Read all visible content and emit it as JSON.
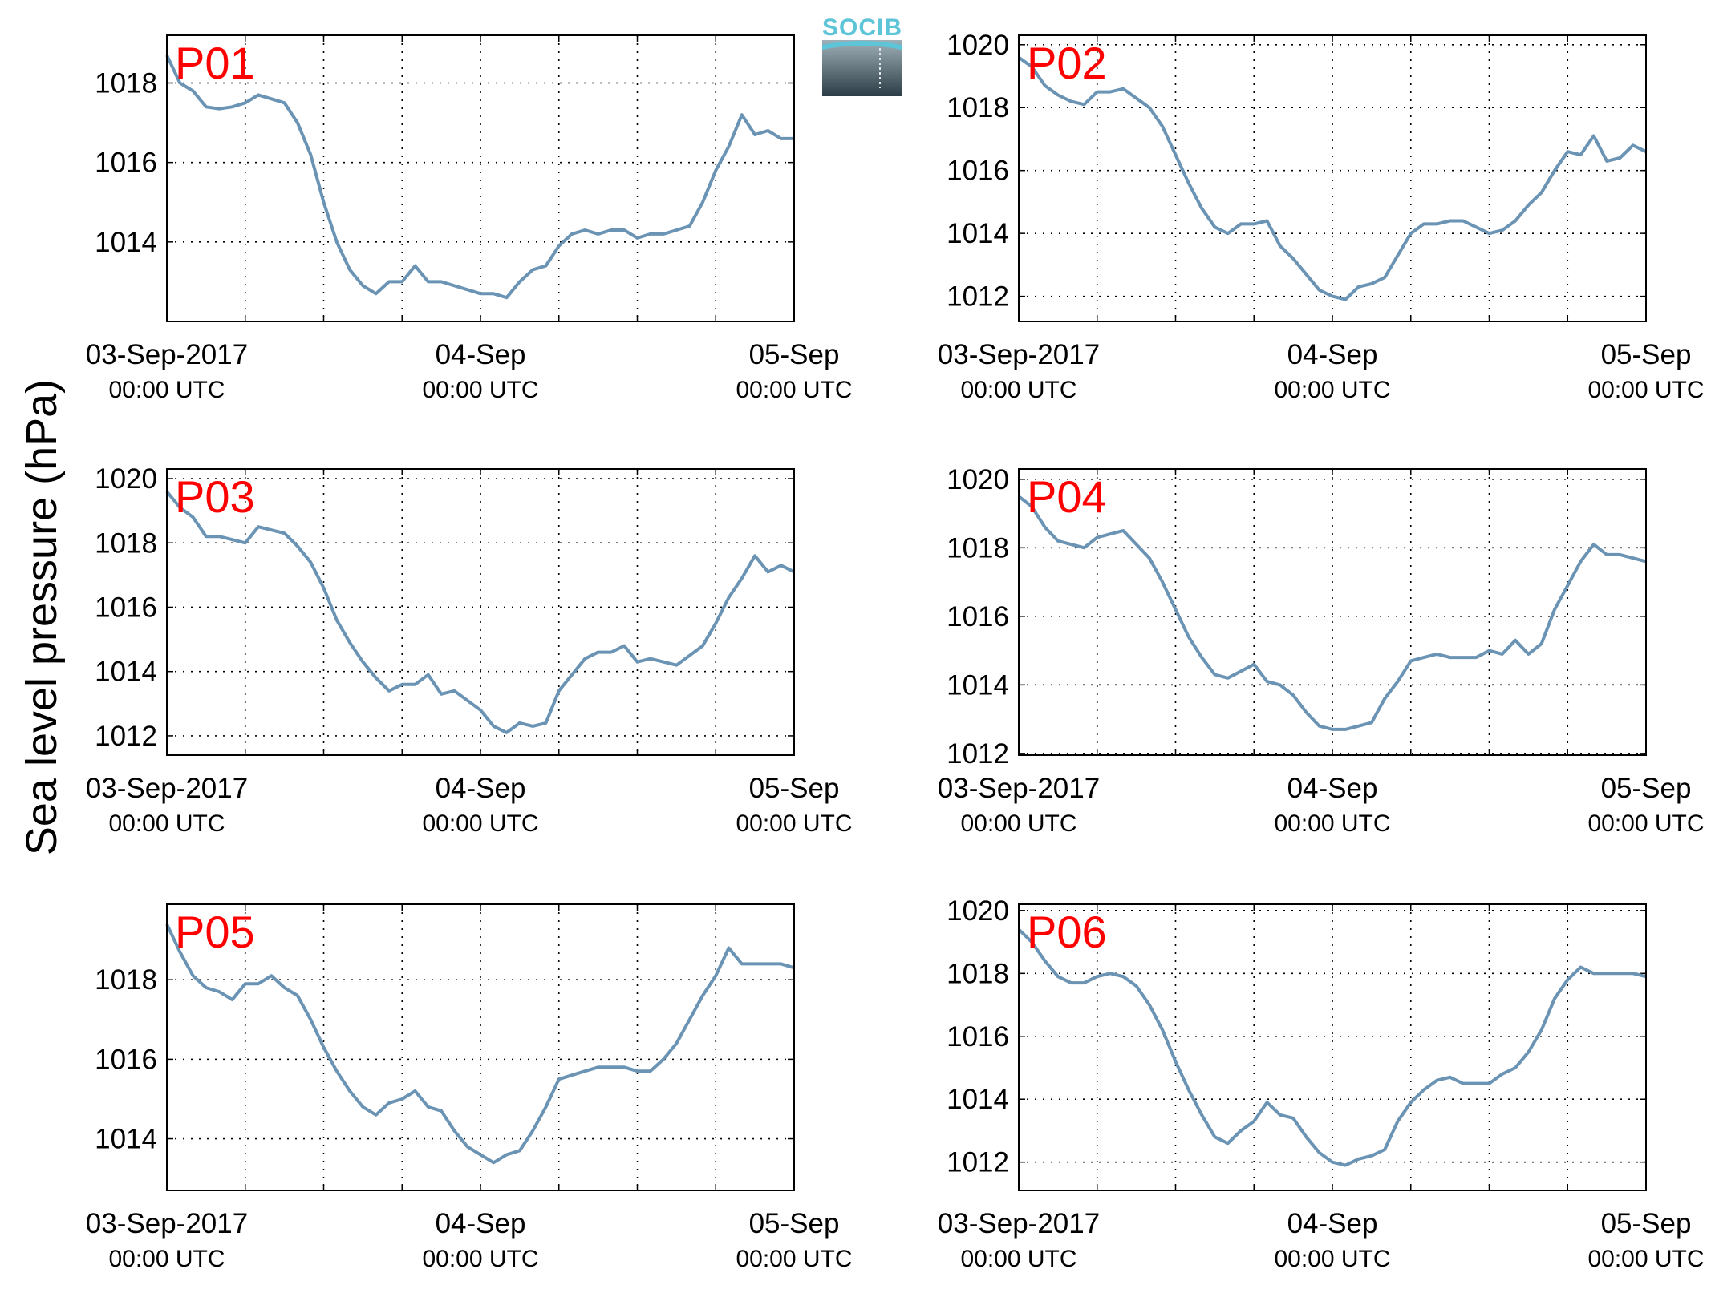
{
  "figure": {
    "ylabel": "Sea level pressure (hPa)",
    "logo": {
      "text": "SOCIB"
    }
  },
  "chart_data": [
    {
      "type": "line",
      "label": "P01",
      "xlim": [
        0,
        48
      ],
      "ylim": [
        1012.0,
        1019.2
      ],
      "yticks": [
        1014,
        1016,
        1018
      ],
      "xtick_labels": [
        {
          "x": 0,
          "label": "03-Sep-2017",
          "sublabel": "00:00 UTC"
        },
        {
          "x": 24,
          "label": "04-Sep",
          "sublabel": "00:00 UTC"
        },
        {
          "x": 48,
          "label": "05-Sep",
          "sublabel": "00:00 UTC"
        }
      ],
      "grid": true,
      "line_color": "#6a93b4",
      "series": [
        {
          "x": [
            0,
            1,
            2,
            3,
            4,
            5,
            6,
            7,
            8,
            9,
            10,
            11,
            12,
            13,
            14,
            15,
            16,
            17,
            18,
            19,
            20,
            21,
            22,
            23,
            24,
            25,
            26,
            27,
            28,
            29,
            30,
            31,
            32,
            33,
            34,
            35,
            36,
            37,
            38,
            39,
            40,
            41,
            42,
            43,
            44,
            45,
            46,
            47,
            48
          ],
          "y": [
            1018.7,
            1018.0,
            1017.8,
            1017.4,
            1017.35,
            1017.4,
            1017.5,
            1017.7,
            1017.6,
            1017.5,
            1017.0,
            1016.2,
            1015.0,
            1014.0,
            1013.3,
            1012.9,
            1012.7,
            1013.0,
            1013.0,
            1013.4,
            1013.0,
            1013.0,
            1012.9,
            1012.8,
            1012.7,
            1012.7,
            1012.6,
            1013.0,
            1013.3,
            1013.4,
            1013.9,
            1014.2,
            1014.3,
            1014.2,
            1014.3,
            1014.3,
            1014.1,
            1014.2,
            1014.2,
            1014.3,
            1014.4,
            1015.0,
            1015.8,
            1016.4,
            1017.2,
            1016.7,
            1016.8,
            1016.6,
            1016.6
          ]
        }
      ]
    },
    {
      "type": "line",
      "label": "P02",
      "xlim": [
        0,
        48
      ],
      "ylim": [
        1011.2,
        1020.3
      ],
      "yticks": [
        1012,
        1014,
        1016,
        1018,
        1020
      ],
      "xtick_labels": [
        {
          "x": 0,
          "label": "03-Sep-2017",
          "sublabel": "00:00 UTC"
        },
        {
          "x": 24,
          "label": "04-Sep",
          "sublabel": "00:00 UTC"
        },
        {
          "x": 48,
          "label": "05-Sep",
          "sublabel": "00:00 UTC"
        }
      ],
      "grid": true,
      "line_color": "#6a93b4",
      "series": [
        {
          "x": [
            0,
            1,
            2,
            3,
            4,
            5,
            6,
            7,
            8,
            9,
            10,
            11,
            12,
            13,
            14,
            15,
            16,
            17,
            18,
            19,
            20,
            21,
            22,
            23,
            24,
            25,
            26,
            27,
            28,
            29,
            30,
            31,
            32,
            33,
            34,
            35,
            36,
            37,
            38,
            39,
            40,
            41,
            42,
            43,
            44,
            45,
            46,
            47,
            48
          ],
          "y": [
            1019.6,
            1019.3,
            1018.7,
            1018.4,
            1018.2,
            1018.1,
            1018.5,
            1018.5,
            1018.6,
            1018.3,
            1018.0,
            1017.4,
            1016.5,
            1015.6,
            1014.8,
            1014.2,
            1014.0,
            1014.3,
            1014.3,
            1014.4,
            1013.6,
            1013.2,
            1012.7,
            1012.2,
            1012.0,
            1011.9,
            1012.3,
            1012.4,
            1012.6,
            1013.3,
            1014.0,
            1014.3,
            1014.3,
            1014.4,
            1014.4,
            1014.2,
            1014.0,
            1014.1,
            1014.4,
            1014.9,
            1015.3,
            1016.0,
            1016.6,
            1016.5,
            1017.1,
            1016.3,
            1016.4,
            1016.8,
            1016.6
          ]
        }
      ]
    },
    {
      "type": "line",
      "label": "P03",
      "xlim": [
        0,
        48
      ],
      "ylim": [
        1011.4,
        1020.3
      ],
      "yticks": [
        1012,
        1014,
        1016,
        1018,
        1020
      ],
      "xtick_labels": [
        {
          "x": 0,
          "label": "03-Sep-2017",
          "sublabel": "00:00 UTC"
        },
        {
          "x": 24,
          "label": "04-Sep",
          "sublabel": "00:00 UTC"
        },
        {
          "x": 48,
          "label": "05-Sep",
          "sublabel": "00:00 UTC"
        }
      ],
      "grid": true,
      "line_color": "#6a93b4",
      "series": [
        {
          "x": [
            0,
            1,
            2,
            3,
            4,
            5,
            6,
            7,
            8,
            9,
            10,
            11,
            12,
            13,
            14,
            15,
            16,
            17,
            18,
            19,
            20,
            21,
            22,
            23,
            24,
            25,
            26,
            27,
            28,
            29,
            30,
            31,
            32,
            33,
            34,
            35,
            36,
            37,
            38,
            39,
            40,
            41,
            42,
            43,
            44,
            45,
            46,
            47,
            48
          ],
          "y": [
            1019.6,
            1019.1,
            1018.8,
            1018.2,
            1018.2,
            1018.1,
            1018.0,
            1018.5,
            1018.4,
            1018.3,
            1017.9,
            1017.4,
            1016.6,
            1015.6,
            1014.9,
            1014.3,
            1013.8,
            1013.4,
            1013.6,
            1013.6,
            1013.9,
            1013.3,
            1013.4,
            1013.1,
            1012.8,
            1012.3,
            1012.1,
            1012.4,
            1012.3,
            1012.4,
            1013.4,
            1013.9,
            1014.4,
            1014.6,
            1014.6,
            1014.8,
            1014.3,
            1014.4,
            1014.3,
            1014.2,
            1014.5,
            1014.8,
            1015.5,
            1016.3,
            1016.9,
            1017.6,
            1017.1,
            1017.3,
            1017.1
          ]
        }
      ]
    },
    {
      "type": "line",
      "label": "P04",
      "xlim": [
        0,
        48
      ],
      "ylim": [
        1011.95,
        1020.3
      ],
      "yticks": [
        1012,
        1014,
        1016,
        1018,
        1020
      ],
      "xtick_labels": [
        {
          "x": 0,
          "label": "03-Sep-2017",
          "sublabel": "00:00 UTC"
        },
        {
          "x": 24,
          "label": "04-Sep",
          "sublabel": "00:00 UTC"
        },
        {
          "x": 48,
          "label": "05-Sep",
          "sublabel": "00:00 UTC"
        }
      ],
      "grid": true,
      "line_color": "#6a93b4",
      "series": [
        {
          "x": [
            0,
            1,
            2,
            3,
            4,
            5,
            6,
            7,
            8,
            9,
            10,
            11,
            12,
            13,
            14,
            15,
            16,
            17,
            18,
            19,
            20,
            21,
            22,
            23,
            24,
            25,
            26,
            27,
            28,
            29,
            30,
            31,
            32,
            33,
            34,
            35,
            36,
            37,
            38,
            39,
            40,
            41,
            42,
            43,
            44,
            45,
            46,
            47,
            48
          ],
          "y": [
            1019.5,
            1019.2,
            1018.6,
            1018.2,
            1018.1,
            1018.0,
            1018.3,
            1018.4,
            1018.5,
            1018.1,
            1017.7,
            1017.0,
            1016.2,
            1015.4,
            1014.8,
            1014.3,
            1014.2,
            1014.4,
            1014.6,
            1014.1,
            1014.0,
            1013.7,
            1013.2,
            1012.8,
            1012.7,
            1012.7,
            1012.8,
            1012.9,
            1013.6,
            1014.1,
            1014.7,
            1014.8,
            1014.9,
            1014.8,
            1014.8,
            1014.8,
            1015.0,
            1014.9,
            1015.3,
            1014.9,
            1015.2,
            1016.2,
            1016.9,
            1017.6,
            1018.1,
            1017.8,
            1017.8,
            1017.7,
            1017.6
          ]
        }
      ]
    },
    {
      "type": "line",
      "label": "P05",
      "xlim": [
        0,
        48
      ],
      "ylim": [
        1012.7,
        1019.9
      ],
      "yticks": [
        1014,
        1016,
        1018
      ],
      "xtick_labels": [
        {
          "x": 0,
          "label": "03-Sep-2017",
          "sublabel": "00:00 UTC"
        },
        {
          "x": 24,
          "label": "04-Sep",
          "sublabel": "00:00 UTC"
        },
        {
          "x": 48,
          "label": "05-Sep",
          "sublabel": "00:00 UTC"
        }
      ],
      "grid": true,
      "line_color": "#6a93b4",
      "series": [
        {
          "x": [
            0,
            1,
            2,
            3,
            4,
            5,
            6,
            7,
            8,
            9,
            10,
            11,
            12,
            13,
            14,
            15,
            16,
            17,
            18,
            19,
            20,
            21,
            22,
            23,
            24,
            25,
            26,
            27,
            28,
            29,
            30,
            31,
            32,
            33,
            34,
            35,
            36,
            37,
            38,
            39,
            40,
            41,
            42,
            43,
            44,
            45,
            46,
            47,
            48
          ],
          "y": [
            1019.4,
            1018.7,
            1018.1,
            1017.8,
            1017.7,
            1017.5,
            1017.9,
            1017.9,
            1018.1,
            1017.8,
            1017.6,
            1017.0,
            1016.3,
            1015.7,
            1015.2,
            1014.8,
            1014.6,
            1014.9,
            1015.0,
            1015.2,
            1014.8,
            1014.7,
            1014.2,
            1013.8,
            1013.6,
            1013.4,
            1013.6,
            1013.7,
            1014.2,
            1014.8,
            1015.5,
            1015.6,
            1015.7,
            1015.8,
            1015.8,
            1015.8,
            1015.7,
            1015.7,
            1016.0,
            1016.4,
            1017.0,
            1017.6,
            1018.1,
            1018.8,
            1018.4,
            1018.4,
            1018.4,
            1018.4,
            1018.3
          ]
        }
      ]
    },
    {
      "type": "line",
      "label": "P06",
      "xlim": [
        0,
        48
      ],
      "ylim": [
        1011.1,
        1020.2
      ],
      "yticks": [
        1012,
        1014,
        1016,
        1018,
        1020
      ],
      "xtick_labels": [
        {
          "x": 0,
          "label": "03-Sep-2017",
          "sublabel": "00:00 UTC"
        },
        {
          "x": 24,
          "label": "04-Sep",
          "sublabel": "00:00 UTC"
        },
        {
          "x": 48,
          "label": "05-Sep",
          "sublabel": "00:00 UTC"
        }
      ],
      "grid": true,
      "line_color": "#6a93b4",
      "series": [
        {
          "x": [
            0,
            1,
            2,
            3,
            4,
            5,
            6,
            7,
            8,
            9,
            10,
            11,
            12,
            13,
            14,
            15,
            16,
            17,
            18,
            19,
            20,
            21,
            22,
            23,
            24,
            25,
            26,
            27,
            28,
            29,
            30,
            31,
            32,
            33,
            34,
            35,
            36,
            37,
            38,
            39,
            40,
            41,
            42,
            43,
            44,
            45,
            46,
            47,
            48
          ],
          "y": [
            1019.4,
            1019.0,
            1018.4,
            1017.9,
            1017.7,
            1017.7,
            1017.9,
            1018.0,
            1017.9,
            1017.6,
            1017.0,
            1016.2,
            1015.2,
            1014.3,
            1013.5,
            1012.8,
            1012.6,
            1013.0,
            1013.3,
            1013.9,
            1013.5,
            1013.4,
            1012.8,
            1012.3,
            1012.0,
            1011.9,
            1012.1,
            1012.2,
            1012.4,
            1013.3,
            1013.9,
            1014.3,
            1014.6,
            1014.7,
            1014.5,
            1014.5,
            1014.5,
            1014.8,
            1015.0,
            1015.5,
            1016.2,
            1017.2,
            1017.8,
            1018.2,
            1018.0,
            1018.0,
            1018.0,
            1018.0,
            1017.9
          ]
        }
      ]
    }
  ]
}
